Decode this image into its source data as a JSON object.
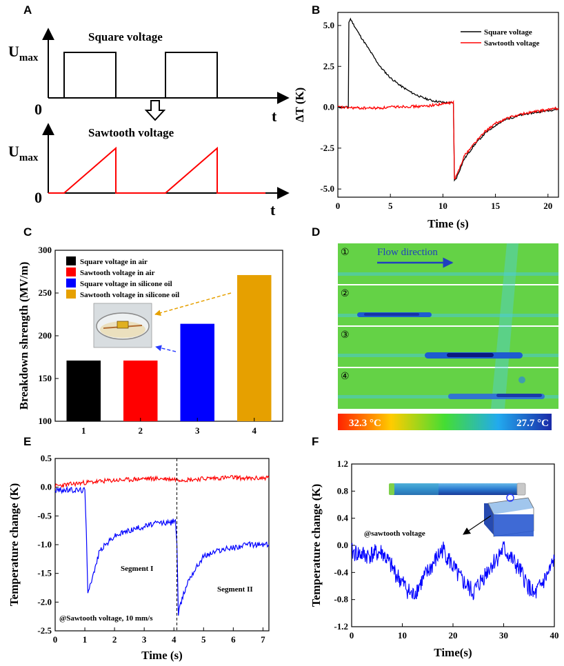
{
  "panels": [
    "A",
    "B",
    "C",
    "D",
    "E",
    "F"
  ],
  "panel_a": {
    "top_label": "Square voltage",
    "bottom_label": "Sawtooth voltage",
    "umax": "U",
    "umax_sub": "max",
    "origin": "0",
    "t": "t"
  },
  "panel_d": {
    "flow_label": "Flow direction",
    "frames": [
      "①",
      "②",
      "③",
      "④"
    ],
    "scale_high": "32.3 °C",
    "scale_low": "27.7 °C"
  },
  "chart_data": [
    {
      "id": "B",
      "type": "line",
      "xlabel": "Time (s)",
      "ylabel": "ΔT (K)",
      "xlim": [
        0,
        21
      ],
      "ylim": [
        -5.5,
        5.8
      ],
      "xticks": [
        0,
        5,
        10,
        15,
        20
      ],
      "yticks": [
        -5.0,
        -2.5,
        0.0,
        2.5,
        5.0
      ],
      "ytick_labels": [
        "-5.0",
        "-2.5",
        "0.0",
        "2.5",
        "5.0"
      ],
      "legend_position": "top-right",
      "series": [
        {
          "name": "Square voltage",
          "color": "#000000",
          "x": [
            0,
            1.0,
            1.05,
            1.2,
            2,
            3,
            4,
            5,
            6,
            7,
            8,
            9,
            10,
            11.0,
            11.1,
            11.3,
            12,
            13,
            14,
            15,
            16,
            17,
            18,
            19,
            20,
            21
          ],
          "y": [
            0,
            0,
            5.2,
            5.4,
            4.5,
            3.5,
            2.5,
            1.8,
            1.3,
            0.9,
            0.6,
            0.4,
            0.3,
            0.25,
            -4.5,
            -4.3,
            -3.2,
            -2.3,
            -1.6,
            -1.1,
            -0.75,
            -0.55,
            -0.4,
            -0.3,
            -0.2,
            -0.1
          ]
        },
        {
          "name": "Sawtooth voltage",
          "color": "#ff0000",
          "x": [
            0,
            2,
            4,
            6,
            8,
            10,
            11.0,
            11.1,
            11.3,
            12,
            13,
            14,
            15,
            16,
            17,
            18,
            19,
            20,
            21
          ],
          "y": [
            0,
            -0.05,
            -0.05,
            0.05,
            0.05,
            0.2,
            0.3,
            -4.4,
            -4.2,
            -3.0,
            -2.2,
            -1.5,
            -1.0,
            -0.7,
            -0.5,
            -0.35,
            -0.25,
            -0.15,
            -0.05
          ]
        }
      ]
    },
    {
      "id": "C",
      "type": "bar",
      "ylabel": "Breakdown shrength (MV/m)",
      "ylim": [
        100,
        300
      ],
      "yticks": [
        100,
        150,
        200,
        250,
        300
      ],
      "categories": [
        "1",
        "2",
        "3",
        "4"
      ],
      "values": [
        171,
        171,
        214,
        271
      ],
      "colors": [
        "#000000",
        "#ff0000",
        "#0000ff",
        "#e6a000"
      ],
      "legend": [
        "Square voltage in air",
        "Sawtooth voltage in air",
        "Square voltage in silicone oil",
        "Sawtooth voltage in silicone oil"
      ]
    },
    {
      "id": "E",
      "type": "line",
      "xlabel": "Time (s)",
      "ylabel": "Temperature change (K)",
      "xlim": [
        0,
        7.2
      ],
      "ylim": [
        -2.5,
        0.5
      ],
      "xticks": [
        0,
        1,
        2,
        3,
        4,
        5,
        6,
        7
      ],
      "yticks": [
        -2.5,
        -2.0,
        -1.5,
        -1.0,
        -0.5,
        0.0,
        0.5
      ],
      "ytick_labels": [
        "-2.5",
        "-2.0",
        "-1.5",
        "-1.0",
        "-0.5",
        "0.0",
        "0.5"
      ],
      "annotations": [
        "Segment I",
        "Segment II",
        "@Sawtooth voltage, 10 mm/s"
      ],
      "divider_x": 4.1,
      "series": [
        {
          "color": "#ff0000",
          "x": [
            0,
            0.5,
            1,
            1.5,
            2,
            2.5,
            3,
            3.5,
            4,
            4.5,
            5,
            5.5,
            6,
            6.5,
            7,
            7.2
          ],
          "y": [
            0.02,
            0.05,
            0.08,
            0.1,
            0.12,
            0.13,
            0.15,
            0.15,
            0.14,
            0.13,
            0.15,
            0.16,
            0.17,
            0.15,
            0.16,
            0.17
          ]
        },
        {
          "color": "#0000ff",
          "x": [
            0,
            0.5,
            1.0,
            1.05,
            1.1,
            1.3,
            1.5,
            2,
            2.5,
            3,
            3.5,
            3.9,
            4.05,
            4.1,
            4.15,
            4.3,
            4.5,
            5,
            5.5,
            6,
            6.5,
            7,
            7.2
          ],
          "y": [
            -0.05,
            -0.05,
            -0.05,
            -0.8,
            -1.8,
            -1.5,
            -1.1,
            -0.85,
            -0.75,
            -0.68,
            -0.62,
            -0.62,
            -0.55,
            -1.0,
            -2.2,
            -1.9,
            -1.6,
            -1.2,
            -1.1,
            -1.05,
            -1.0,
            -1.0,
            -1.0
          ]
        }
      ]
    },
    {
      "id": "F",
      "type": "line",
      "xlabel": "Time(s)",
      "ylabel": "Temperature change (K)",
      "xlim": [
        0,
        40
      ],
      "ylim": [
        -1.2,
        1.2
      ],
      "xticks": [
        0,
        10,
        20,
        30,
        40
      ],
      "yticks": [
        -1.2,
        -0.8,
        -0.4,
        0.0,
        0.4,
        0.8,
        1.2
      ],
      "ytick_labels": [
        "-1.2",
        "-0.8",
        "-0.4",
        "0.0",
        "0.4",
        "0.8",
        "1.2"
      ],
      "annotation": "@sawtooth voltage",
      "series": [
        {
          "color": "#0000ff",
          "x": [
            0,
            3,
            6,
            9,
            12,
            15,
            18,
            21,
            24,
            27,
            30,
            33,
            36,
            39,
            40
          ],
          "y": [
            -0.1,
            -0.15,
            -0.1,
            -0.45,
            -0.75,
            -0.4,
            -0.05,
            -0.45,
            -0.7,
            -0.35,
            -0.05,
            -0.35,
            -0.75,
            -0.4,
            -0.2
          ]
        }
      ]
    }
  ]
}
